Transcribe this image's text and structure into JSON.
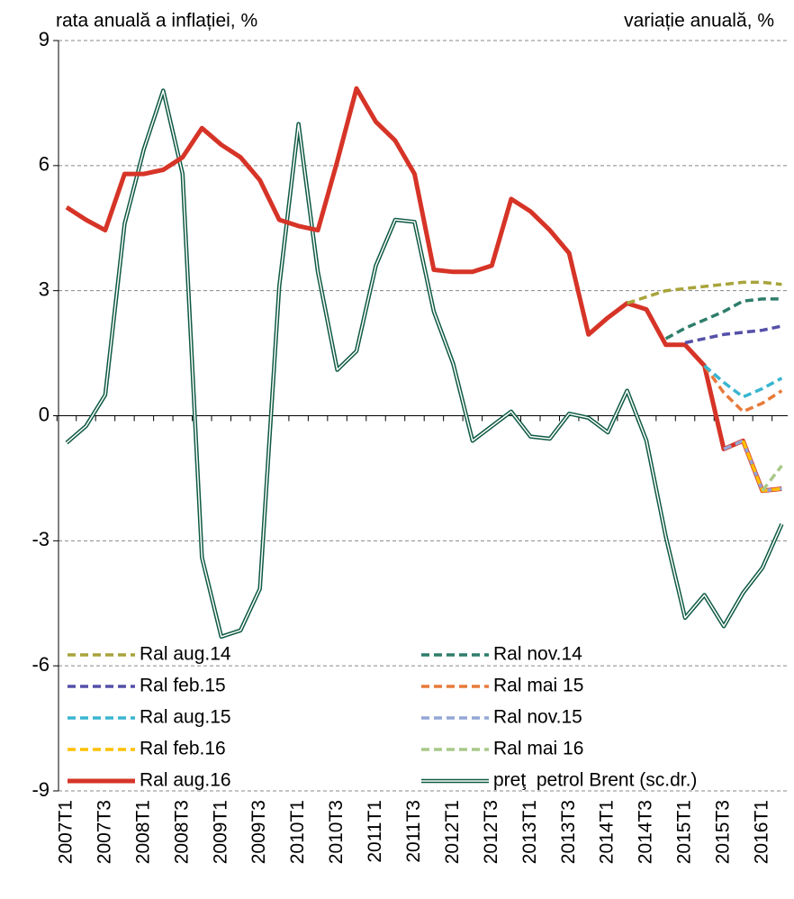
{
  "chart_data": {
    "type": "line",
    "title_left": "rata anuală a inflației, %",
    "title_right": "variație anuală, %",
    "categories": [
      "2007T1",
      null,
      "2007T3",
      null,
      "2008T1",
      null,
      "2008T3",
      null,
      "2009T1",
      null,
      "2009T3",
      null,
      "2010T1",
      null,
      "2010T3",
      null,
      "2011T1",
      null,
      "2011T3",
      null,
      "2012T1",
      null,
      "2012T3",
      null,
      "2013T1",
      null,
      "2013T3",
      null,
      "2014T1",
      null,
      "2014T3",
      null,
      "2015T1",
      null,
      "2015T3",
      null,
      "2016T1",
      null
    ],
    "ylim": [
      -9,
      9
    ],
    "yticks": [
      9,
      6,
      3,
      0,
      -3,
      -6,
      -9
    ],
    "grid": true,
    "series": [
      {
        "name": "Ral aug.14",
        "color": "#a8a43c",
        "style": "dashed",
        "values": [
          null,
          null,
          null,
          null,
          null,
          null,
          null,
          null,
          null,
          null,
          null,
          null,
          null,
          null,
          null,
          null,
          null,
          null,
          null,
          null,
          null,
          null,
          null,
          null,
          null,
          null,
          null,
          null,
          null,
          2.7,
          2.85,
          3.0,
          3.05,
          3.1,
          3.15,
          3.2,
          3.2,
          3.15
        ]
      },
      {
        "name": "Ral nov.14",
        "color": "#2e7d6a",
        "style": "dashed",
        "values": [
          null,
          null,
          null,
          null,
          null,
          null,
          null,
          null,
          null,
          null,
          null,
          null,
          null,
          null,
          null,
          null,
          null,
          null,
          null,
          null,
          null,
          null,
          null,
          null,
          null,
          null,
          null,
          null,
          null,
          null,
          null,
          1.85,
          2.1,
          2.3,
          2.5,
          2.75,
          2.8,
          2.8
        ]
      },
      {
        "name": "Ral feb.15",
        "color": "#5550a8",
        "style": "dashed",
        "values": [
          null,
          null,
          null,
          null,
          null,
          null,
          null,
          null,
          null,
          null,
          null,
          null,
          null,
          null,
          null,
          null,
          null,
          null,
          null,
          null,
          null,
          null,
          null,
          null,
          null,
          null,
          null,
          null,
          null,
          null,
          null,
          null,
          1.75,
          1.85,
          1.95,
          2.0,
          2.05,
          2.15
        ]
      },
      {
        "name": "Ral mai 15",
        "color": "#e87a3a",
        "style": "dashed",
        "values": [
          null,
          null,
          null,
          null,
          null,
          null,
          null,
          null,
          null,
          null,
          null,
          null,
          null,
          null,
          null,
          null,
          null,
          null,
          null,
          null,
          null,
          null,
          null,
          null,
          null,
          null,
          null,
          null,
          null,
          null,
          null,
          null,
          null,
          1.2,
          0.55,
          0.1,
          0.3,
          0.6
        ]
      },
      {
        "name": "Ral aug.15",
        "color": "#3ab5d0",
        "style": "dashed",
        "values": [
          null,
          null,
          null,
          null,
          null,
          null,
          null,
          null,
          null,
          null,
          null,
          null,
          null,
          null,
          null,
          null,
          null,
          null,
          null,
          null,
          null,
          null,
          null,
          null,
          null,
          null,
          null,
          null,
          null,
          null,
          null,
          null,
          null,
          1.2,
          0.8,
          0.45,
          0.65,
          0.9
        ]
      },
      {
        "name": "Ral nov.15",
        "color": "#94a6d6",
        "style": "dashed",
        "values": [
          null,
          null,
          null,
          null,
          null,
          null,
          null,
          null,
          null,
          null,
          null,
          null,
          null,
          null,
          null,
          null,
          null,
          null,
          null,
          null,
          null,
          null,
          null,
          null,
          null,
          null,
          null,
          null,
          null,
          null,
          null,
          null,
          null,
          null,
          -0.8,
          -0.6,
          -1.8,
          -1.75
        ]
      },
      {
        "name": "Ral feb.16",
        "color": "#ffc000",
        "style": "dashed",
        "values": [
          null,
          null,
          null,
          null,
          null,
          null,
          null,
          null,
          null,
          null,
          null,
          null,
          null,
          null,
          null,
          null,
          null,
          null,
          null,
          null,
          null,
          null,
          null,
          null,
          null,
          null,
          null,
          null,
          null,
          null,
          null,
          null,
          null,
          null,
          null,
          -0.6,
          -1.8,
          -1.75
        ]
      },
      {
        "name": "Ral mai 16",
        "color": "#a9c98a",
        "style": "dashed",
        "values": [
          null,
          null,
          null,
          null,
          null,
          null,
          null,
          null,
          null,
          null,
          null,
          null,
          null,
          null,
          null,
          null,
          null,
          null,
          null,
          null,
          null,
          null,
          null,
          null,
          null,
          null,
          null,
          null,
          null,
          null,
          null,
          null,
          null,
          null,
          null,
          null,
          -1.8,
          -1.2
        ]
      },
      {
        "name": "Ral aug.16",
        "color": "#d63427",
        "style": "solid",
        "values": [
          5.0,
          4.7,
          4.45,
          5.8,
          5.8,
          5.9,
          6.2,
          6.9,
          6.5,
          6.2,
          5.65,
          4.7,
          4.55,
          4.45,
          6.1,
          7.85,
          7.05,
          6.6,
          5.8,
          3.5,
          3.45,
          3.45,
          3.6,
          5.2,
          4.9,
          4.45,
          3.9,
          1.95,
          2.35,
          2.7,
          2.55,
          1.7,
          1.7,
          1.2,
          -0.8,
          -0.6,
          -1.8,
          -1.75
        ]
      },
      {
        "name": "preţ  petrol Brent (sc.dr.)",
        "color": "#0f5a44",
        "style": "double",
        "values": [
          -0.65,
          -0.25,
          0.5,
          4.6,
          6.4,
          7.8,
          5.8,
          -3.4,
          -5.3,
          -5.15,
          -4.15,
          3.1,
          7.0,
          3.45,
          1.1,
          1.55,
          3.6,
          4.7,
          4.65,
          2.5,
          1.25,
          -0.6,
          -0.25,
          0.1,
          -0.5,
          -0.55,
          0.05,
          -0.05,
          -0.4,
          0.6,
          -0.6,
          -2.9,
          -4.85,
          -4.3,
          -5.05,
          -4.25,
          -3.65,
          -2.6
        ]
      }
    ]
  }
}
